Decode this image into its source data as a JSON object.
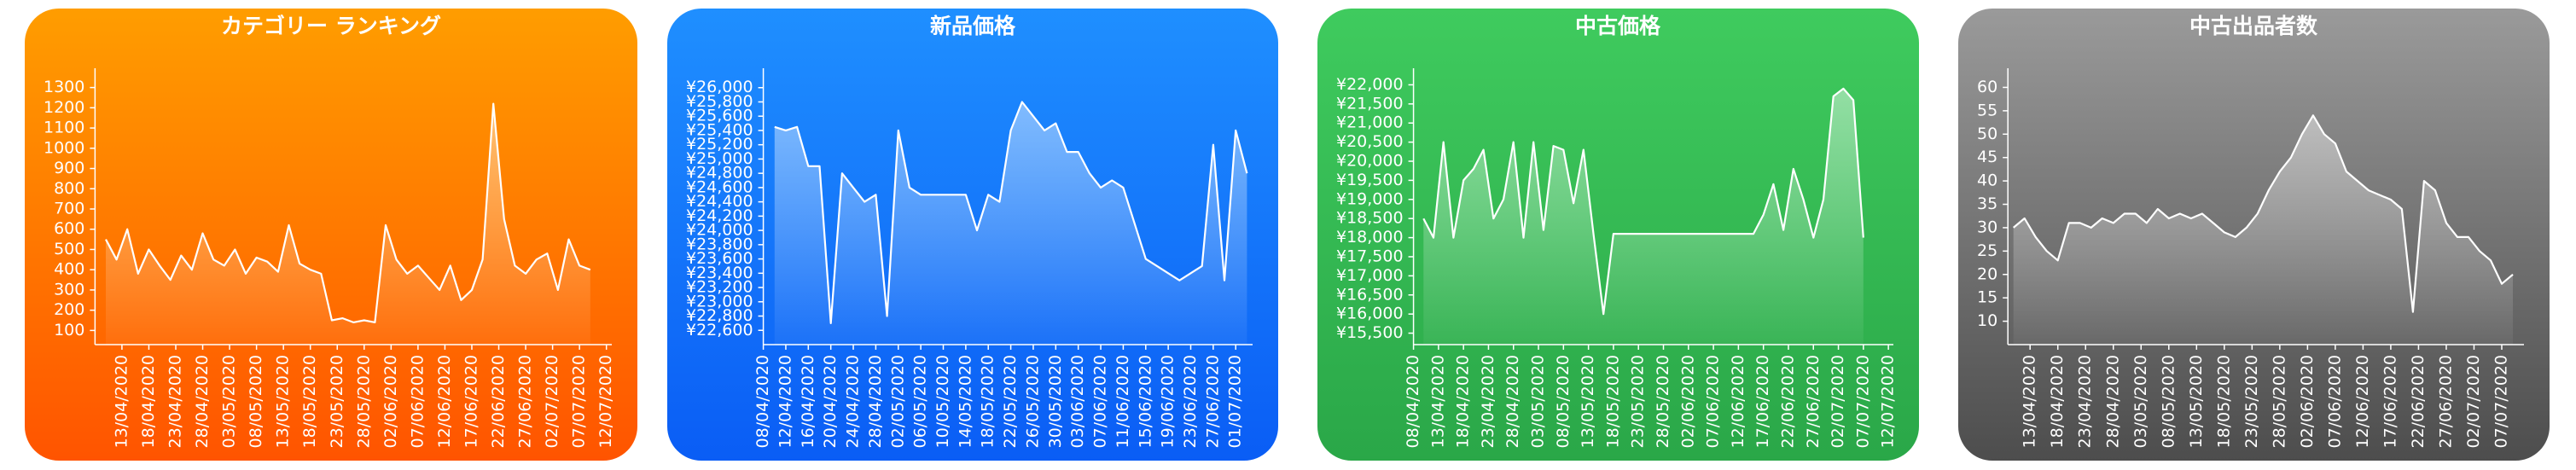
{
  "chart_data": [
    {
      "type": "line",
      "title": "カテゴリー ランキング",
      "color": "#ffffff",
      "x": [
        "2020-04-10",
        "2020-04-12",
        "2020-04-14",
        "2020-04-16",
        "2020-04-18",
        "2020-04-20",
        "2020-04-22",
        "2020-04-24",
        "2020-04-26",
        "2020-04-28",
        "2020-04-30",
        "2020-05-02",
        "2020-05-04",
        "2020-05-06",
        "2020-05-08",
        "2020-05-10",
        "2020-05-12",
        "2020-05-14",
        "2020-05-16",
        "2020-05-18",
        "2020-05-20",
        "2020-05-22",
        "2020-05-24",
        "2020-05-26",
        "2020-05-28",
        "2020-05-30",
        "2020-06-01",
        "2020-06-03",
        "2020-06-05",
        "2020-06-07",
        "2020-06-09",
        "2020-06-11",
        "2020-06-13",
        "2020-06-15",
        "2020-06-17",
        "2020-06-19",
        "2020-06-21",
        "2020-06-23",
        "2020-06-25",
        "2020-06-27",
        "2020-06-29",
        "2020-07-01",
        "2020-07-03",
        "2020-07-05",
        "2020-07-07",
        "2020-07-09"
      ],
      "values": [
        550,
        450,
        600,
        380,
        500,
        420,
        350,
        470,
        400,
        580,
        450,
        420,
        500,
        380,
        460,
        440,
        390,
        620,
        430,
        400,
        380,
        150,
        160,
        140,
        150,
        140,
        620,
        450,
        380,
        420,
        360,
        300,
        420,
        250,
        300,
        450,
        1220,
        650,
        420,
        380,
        450,
        480,
        300,
        550,
        420,
        400
      ],
      "xlim": [
        "2020-04-08",
        "2020-07-13"
      ],
      "xticks": [
        {
          "value": "2020-04-13",
          "label": "13/04/2020"
        },
        {
          "value": "2020-04-18",
          "label": "18/04/2020"
        },
        {
          "value": "2020-04-23",
          "label": "23/04/2020"
        },
        {
          "value": "2020-04-28",
          "label": "28/04/2020"
        },
        {
          "value": "2020-05-03",
          "label": "03/05/2020"
        },
        {
          "value": "2020-05-08",
          "label": "08/05/2020"
        },
        {
          "value": "2020-05-13",
          "label": "13/05/2020"
        },
        {
          "value": "2020-05-18",
          "label": "18/05/2020"
        },
        {
          "value": "2020-05-23",
          "label": "23/05/2020"
        },
        {
          "value": "2020-05-28",
          "label": "28/05/2020"
        },
        {
          "value": "2020-06-02",
          "label": "02/06/2020"
        },
        {
          "value": "2020-06-07",
          "label": "07/06/2020"
        },
        {
          "value": "2020-06-12",
          "label": "12/06/2020"
        },
        {
          "value": "2020-06-17",
          "label": "17/06/2020"
        },
        {
          "value": "2020-06-22",
          "label": "22/06/2020"
        },
        {
          "value": "2020-06-27",
          "label": "27/06/2020"
        },
        {
          "value": "2020-07-02",
          "label": "02/07/2020"
        },
        {
          "value": "2020-07-07",
          "label": "07/07/2020"
        },
        {
          "value": "2020-07-12",
          "label": "12/07/2020"
        }
      ],
      "ylim": [
        30,
        1370
      ],
      "yticks": [
        100,
        200,
        300,
        400,
        500,
        600,
        700,
        800,
        900,
        1000,
        1100,
        1200,
        1300
      ]
    },
    {
      "type": "line",
      "title": "新品価格",
      "color": "#ffffff",
      "x": [
        "2020-04-10",
        "2020-04-12",
        "2020-04-14",
        "2020-04-16",
        "2020-04-18",
        "2020-04-20",
        "2020-04-22",
        "2020-04-24",
        "2020-04-26",
        "2020-04-28",
        "2020-04-30",
        "2020-05-02",
        "2020-05-04",
        "2020-05-06",
        "2020-05-08",
        "2020-05-10",
        "2020-05-12",
        "2020-05-14",
        "2020-05-16",
        "2020-05-18",
        "2020-05-20",
        "2020-05-22",
        "2020-05-24",
        "2020-05-26",
        "2020-05-28",
        "2020-05-30",
        "2020-06-01",
        "2020-06-03",
        "2020-06-05",
        "2020-06-07",
        "2020-06-09",
        "2020-06-11",
        "2020-06-13",
        "2020-06-15",
        "2020-06-17",
        "2020-06-19",
        "2020-06-21",
        "2020-06-23",
        "2020-06-25",
        "2020-06-27",
        "2020-06-29",
        "2020-07-01",
        "2020-07-03"
      ],
      "values": [
        25450,
        25400,
        25450,
        24900,
        24900,
        22700,
        24800,
        24600,
        24400,
        24500,
        22800,
        25400,
        24600,
        24500,
        24500,
        24500,
        24500,
        24500,
        24000,
        24500,
        24400,
        25400,
        25800,
        25600,
        25400,
        25500,
        25100,
        25100,
        24800,
        24600,
        24700,
        24600,
        24100,
        23600,
        23500,
        23400,
        23300,
        23400,
        23500,
        25200,
        23300,
        25400,
        24800
      ],
      "xlim": [
        "2020-04-08",
        "2020-07-04"
      ],
      "xticks": [
        {
          "value": "2020-04-08",
          "label": "08/04/2020"
        },
        {
          "value": "2020-04-12",
          "label": "12/04/2020"
        },
        {
          "value": "2020-04-16",
          "label": "16/04/2020"
        },
        {
          "value": "2020-04-20",
          "label": "20/04/2020"
        },
        {
          "value": "2020-04-24",
          "label": "24/04/2020"
        },
        {
          "value": "2020-04-28",
          "label": "28/04/2020"
        },
        {
          "value": "2020-05-02",
          "label": "02/05/2020"
        },
        {
          "value": "2020-05-06",
          "label": "06/05/2020"
        },
        {
          "value": "2020-05-10",
          "label": "10/05/2020"
        },
        {
          "value": "2020-05-14",
          "label": "14/05/2020"
        },
        {
          "value": "2020-05-18",
          "label": "18/05/2020"
        },
        {
          "value": "2020-05-22",
          "label": "22/05/2020"
        },
        {
          "value": "2020-05-26",
          "label": "26/05/2020"
        },
        {
          "value": "2020-05-30",
          "label": "30/05/2020"
        },
        {
          "value": "2020-06-03",
          "label": "03/06/2020"
        },
        {
          "value": "2020-06-07",
          "label": "07/06/2020"
        },
        {
          "value": "2020-06-11",
          "label": "11/06/2020"
        },
        {
          "value": "2020-06-15",
          "label": "15/06/2020"
        },
        {
          "value": "2020-06-19",
          "label": "19/06/2020"
        },
        {
          "value": "2020-06-23",
          "label": "23/06/2020"
        },
        {
          "value": "2020-06-27",
          "label": "27/06/2020"
        },
        {
          "value": "2020-07-01",
          "label": "01/07/2020"
        }
      ],
      "ylim": [
        22400,
        26200
      ],
      "yticks": [
        {
          "value": 22600,
          "label": "¥22,600"
        },
        {
          "value": 22800,
          "label": "¥22,800"
        },
        {
          "value": 23000,
          "label": "¥23,000"
        },
        {
          "value": 23200,
          "label": "¥23,200"
        },
        {
          "value": 23400,
          "label": "¥23,400"
        },
        {
          "value": 23600,
          "label": "¥23,600"
        },
        {
          "value": 23800,
          "label": "¥23,800"
        },
        {
          "value": 24000,
          "label": "¥24,000"
        },
        {
          "value": 24200,
          "label": "¥24,200"
        },
        {
          "value": 24400,
          "label": "¥24,400"
        },
        {
          "value": 24600,
          "label": "¥24,600"
        },
        {
          "value": 24800,
          "label": "¥24,800"
        },
        {
          "value": 25000,
          "label": "¥25,000"
        },
        {
          "value": 25200,
          "label": "¥25,200"
        },
        {
          "value": 25400,
          "label": "¥25,400"
        },
        {
          "value": 25600,
          "label": "¥25,600"
        },
        {
          "value": 25800,
          "label": "¥25,800"
        },
        {
          "value": 26000,
          "label": "¥26,000"
        }
      ]
    },
    {
      "type": "line",
      "title": "中古価格",
      "color": "#ffffff",
      "x": [
        "2020-04-10",
        "2020-04-12",
        "2020-04-14",
        "2020-04-16",
        "2020-04-18",
        "2020-04-20",
        "2020-04-22",
        "2020-04-24",
        "2020-04-26",
        "2020-04-28",
        "2020-04-30",
        "2020-05-02",
        "2020-05-04",
        "2020-05-06",
        "2020-05-08",
        "2020-05-10",
        "2020-05-12",
        "2020-05-14",
        "2020-05-16",
        "2020-05-18",
        "2020-05-20",
        "2020-05-22",
        "2020-05-24",
        "2020-05-26",
        "2020-05-28",
        "2020-05-30",
        "2020-06-01",
        "2020-06-03",
        "2020-06-05",
        "2020-06-07",
        "2020-06-09",
        "2020-06-11",
        "2020-06-13",
        "2020-06-15",
        "2020-06-17",
        "2020-06-19",
        "2020-06-21",
        "2020-06-23",
        "2020-06-25",
        "2020-06-27",
        "2020-06-29",
        "2020-07-01",
        "2020-07-03",
        "2020-07-05",
        "2020-07-07"
      ],
      "values": [
        18500,
        18000,
        20500,
        18000,
        19500,
        19800,
        20300,
        18500,
        19000,
        20500,
        18000,
        20500,
        18200,
        20400,
        20300,
        18900,
        20300,
        18100,
        16000,
        18100,
        18100,
        18100,
        18100,
        18100,
        18100,
        18100,
        18100,
        18100,
        18100,
        18100,
        18100,
        18100,
        18100,
        18100,
        18600,
        19400,
        18200,
        19800,
        19000,
        18000,
        19000,
        21700,
        21900,
        21600,
        18000
      ],
      "xlim": [
        "2020-04-08",
        "2020-07-13"
      ],
      "xticks": [
        {
          "value": "2020-04-08",
          "label": "08/04/2020"
        },
        {
          "value": "2020-04-13",
          "label": "13/04/2020"
        },
        {
          "value": "2020-04-18",
          "label": "18/04/2020"
        },
        {
          "value": "2020-04-23",
          "label": "23/04/2020"
        },
        {
          "value": "2020-04-28",
          "label": "28/04/2020"
        },
        {
          "value": "2020-05-03",
          "label": "03/05/2020"
        },
        {
          "value": "2020-05-08",
          "label": "08/05/2020"
        },
        {
          "value": "2020-05-13",
          "label": "13/05/2020"
        },
        {
          "value": "2020-05-18",
          "label": "18/05/2020"
        },
        {
          "value": "2020-05-23",
          "label": "23/05/2020"
        },
        {
          "value": "2020-05-28",
          "label": "28/05/2020"
        },
        {
          "value": "2020-06-02",
          "label": "02/06/2020"
        },
        {
          "value": "2020-06-07",
          "label": "07/06/2020"
        },
        {
          "value": "2020-06-12",
          "label": "12/06/2020"
        },
        {
          "value": "2020-06-17",
          "label": "17/06/2020"
        },
        {
          "value": "2020-06-22",
          "label": "22/06/2020"
        },
        {
          "value": "2020-06-27",
          "label": "27/06/2020"
        },
        {
          "value": "2020-07-02",
          "label": "02/07/2020"
        },
        {
          "value": "2020-07-07",
          "label": "07/07/2020"
        },
        {
          "value": "2020-07-12",
          "label": "12/07/2020"
        }
      ],
      "ylim": [
        15200,
        22300
      ],
      "yticks": [
        {
          "value": 15500,
          "label": "¥15,500"
        },
        {
          "value": 16000,
          "label": "¥16,000"
        },
        {
          "value": 16500,
          "label": "¥16,500"
        },
        {
          "value": 17000,
          "label": "¥17,000"
        },
        {
          "value": 17500,
          "label": "¥17,500"
        },
        {
          "value": 18000,
          "label": "¥18,000"
        },
        {
          "value": 18500,
          "label": "¥18,500"
        },
        {
          "value": 19000,
          "label": "¥19,000"
        },
        {
          "value": 19500,
          "label": "¥19,500"
        },
        {
          "value": 20000,
          "label": "¥20,000"
        },
        {
          "value": 20500,
          "label": "¥20,500"
        },
        {
          "value": 21000,
          "label": "¥21,000"
        },
        {
          "value": 21500,
          "label": "¥21,500"
        },
        {
          "value": 22000,
          "label": "¥22,000"
        }
      ]
    },
    {
      "type": "line",
      "title": "中古出品者数",
      "color": "#ffffff",
      "x": [
        "2020-04-10",
        "2020-04-12",
        "2020-04-14",
        "2020-04-16",
        "2020-04-18",
        "2020-04-20",
        "2020-04-22",
        "2020-04-24",
        "2020-04-26",
        "2020-04-28",
        "2020-04-30",
        "2020-05-02",
        "2020-05-04",
        "2020-05-06",
        "2020-05-08",
        "2020-05-10",
        "2020-05-12",
        "2020-05-14",
        "2020-05-16",
        "2020-05-18",
        "2020-05-20",
        "2020-05-22",
        "2020-05-24",
        "2020-05-26",
        "2020-05-28",
        "2020-05-30",
        "2020-06-01",
        "2020-06-03",
        "2020-06-05",
        "2020-06-07",
        "2020-06-09",
        "2020-06-11",
        "2020-06-13",
        "2020-06-15",
        "2020-06-17",
        "2020-06-19",
        "2020-06-21",
        "2020-06-23",
        "2020-06-25",
        "2020-06-27",
        "2020-06-29",
        "2020-07-01",
        "2020-07-03",
        "2020-07-05",
        "2020-07-07",
        "2020-07-09"
      ],
      "values": [
        30,
        32,
        28,
        25,
        23,
        31,
        31,
        30,
        32,
        31,
        33,
        33,
        31,
        34,
        32,
        33,
        32,
        33,
        31,
        29,
        28,
        30,
        33,
        38,
        42,
        45,
        50,
        54,
        50,
        48,
        42,
        40,
        38,
        37,
        36,
        34,
        12,
        40,
        38,
        31,
        28,
        28,
        25,
        23,
        18,
        20
      ],
      "xlim": [
        "2020-04-09",
        "2020-07-11"
      ],
      "xticks": [
        {
          "value": "2020-04-13",
          "label": "13/04/2020"
        },
        {
          "value": "2020-04-18",
          "label": "18/04/2020"
        },
        {
          "value": "2020-04-23",
          "label": "23/04/2020"
        },
        {
          "value": "2020-04-28",
          "label": "28/04/2020"
        },
        {
          "value": "2020-05-03",
          "label": "03/05/2020"
        },
        {
          "value": "2020-05-08",
          "label": "08/05/2020"
        },
        {
          "value": "2020-05-13",
          "label": "13/05/2020"
        },
        {
          "value": "2020-05-18",
          "label": "18/05/2020"
        },
        {
          "value": "2020-05-23",
          "label": "23/05/2020"
        },
        {
          "value": "2020-05-28",
          "label": "28/05/2020"
        },
        {
          "value": "2020-06-02",
          "label": "02/06/2020"
        },
        {
          "value": "2020-06-07",
          "label": "07/06/2020"
        },
        {
          "value": "2020-06-12",
          "label": "12/06/2020"
        },
        {
          "value": "2020-06-17",
          "label": "17/06/2020"
        },
        {
          "value": "2020-06-22",
          "label": "22/06/2020"
        },
        {
          "value": "2020-06-27",
          "label": "27/06/2020"
        },
        {
          "value": "2020-07-02",
          "label": "02/07/2020"
        },
        {
          "value": "2020-07-07",
          "label": "07/07/2020"
        }
      ],
      "ylim": [
        5,
        63
      ],
      "yticks": [
        10,
        15,
        20,
        25,
        30,
        35,
        40,
        45,
        50,
        55,
        60
      ]
    }
  ]
}
